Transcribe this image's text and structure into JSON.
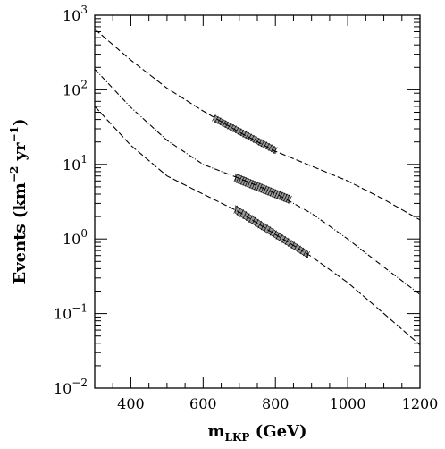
{
  "chart_data": {
    "type": "line",
    "xlabel": {
      "main": "m",
      "sub": "LKP",
      "rest": " (GeV)"
    },
    "ylabel": {
      "prefix": "Events (km",
      "exp1": "−2",
      "mid": " yr",
      "exp2": "−1",
      "suffix": ")"
    },
    "xlim": [
      300,
      1200
    ],
    "ylim": [
      0.01,
      1000
    ],
    "y_scale": "log",
    "x_ticks": [
      400,
      600,
      800,
      1000,
      1200
    ],
    "x_tick_labels": [
      "400",
      "600",
      "800",
      "1000",
      "1200"
    ],
    "y_ticks": [
      0.01,
      0.1,
      1,
      10,
      100,
      1000
    ],
    "y_tick_labels": [
      {
        "base": "10",
        "exp": "−2"
      },
      {
        "base": "10",
        "exp": "−1"
      },
      {
        "base": "10",
        "exp": "0"
      },
      {
        "base": "10",
        "exp": "1"
      },
      {
        "base": "10",
        "exp": "2"
      },
      {
        "base": "10",
        "exp": "3"
      }
    ],
    "series": [
      {
        "x": [
          300,
          400,
          500,
          600,
          700,
          800,
          900,
          1000,
          1100,
          1200
        ],
        "y": [
          650,
          250,
          105,
          52,
          27,
          15,
          9.5,
          6,
          3.4,
          1.8
        ],
        "band": {
          "x": [
            630,
            800
          ],
          "y_upper": [
            46,
            17
          ],
          "y_lower": [
            38,
            14
          ]
        }
      },
      {
        "x": [
          300,
          400,
          500,
          600,
          700,
          800,
          900,
          1000,
          1100,
          1200
        ],
        "y": [
          190,
          58,
          21,
          10,
          6.5,
          4.1,
          2.2,
          1.0,
          0.42,
          0.18
        ],
        "band": {
          "x": [
            690,
            840
          ],
          "y_upper": [
            7.5,
            3.8
          ],
          "y_lower": [
            5.8,
            3.0
          ]
        }
      },
      {
        "x": [
          300,
          400,
          500,
          600,
          700,
          800,
          900,
          1000,
          1100,
          1200
        ],
        "y": [
          60,
          18,
          7,
          4,
          2.3,
          1.15,
          0.58,
          0.26,
          0.1,
          0.038
        ],
        "band": {
          "x": [
            690,
            890
          ],
          "y_upper": [
            2.8,
            0.68
          ],
          "y_lower": [
            2.2,
            0.56
          ]
        }
      }
    ]
  }
}
